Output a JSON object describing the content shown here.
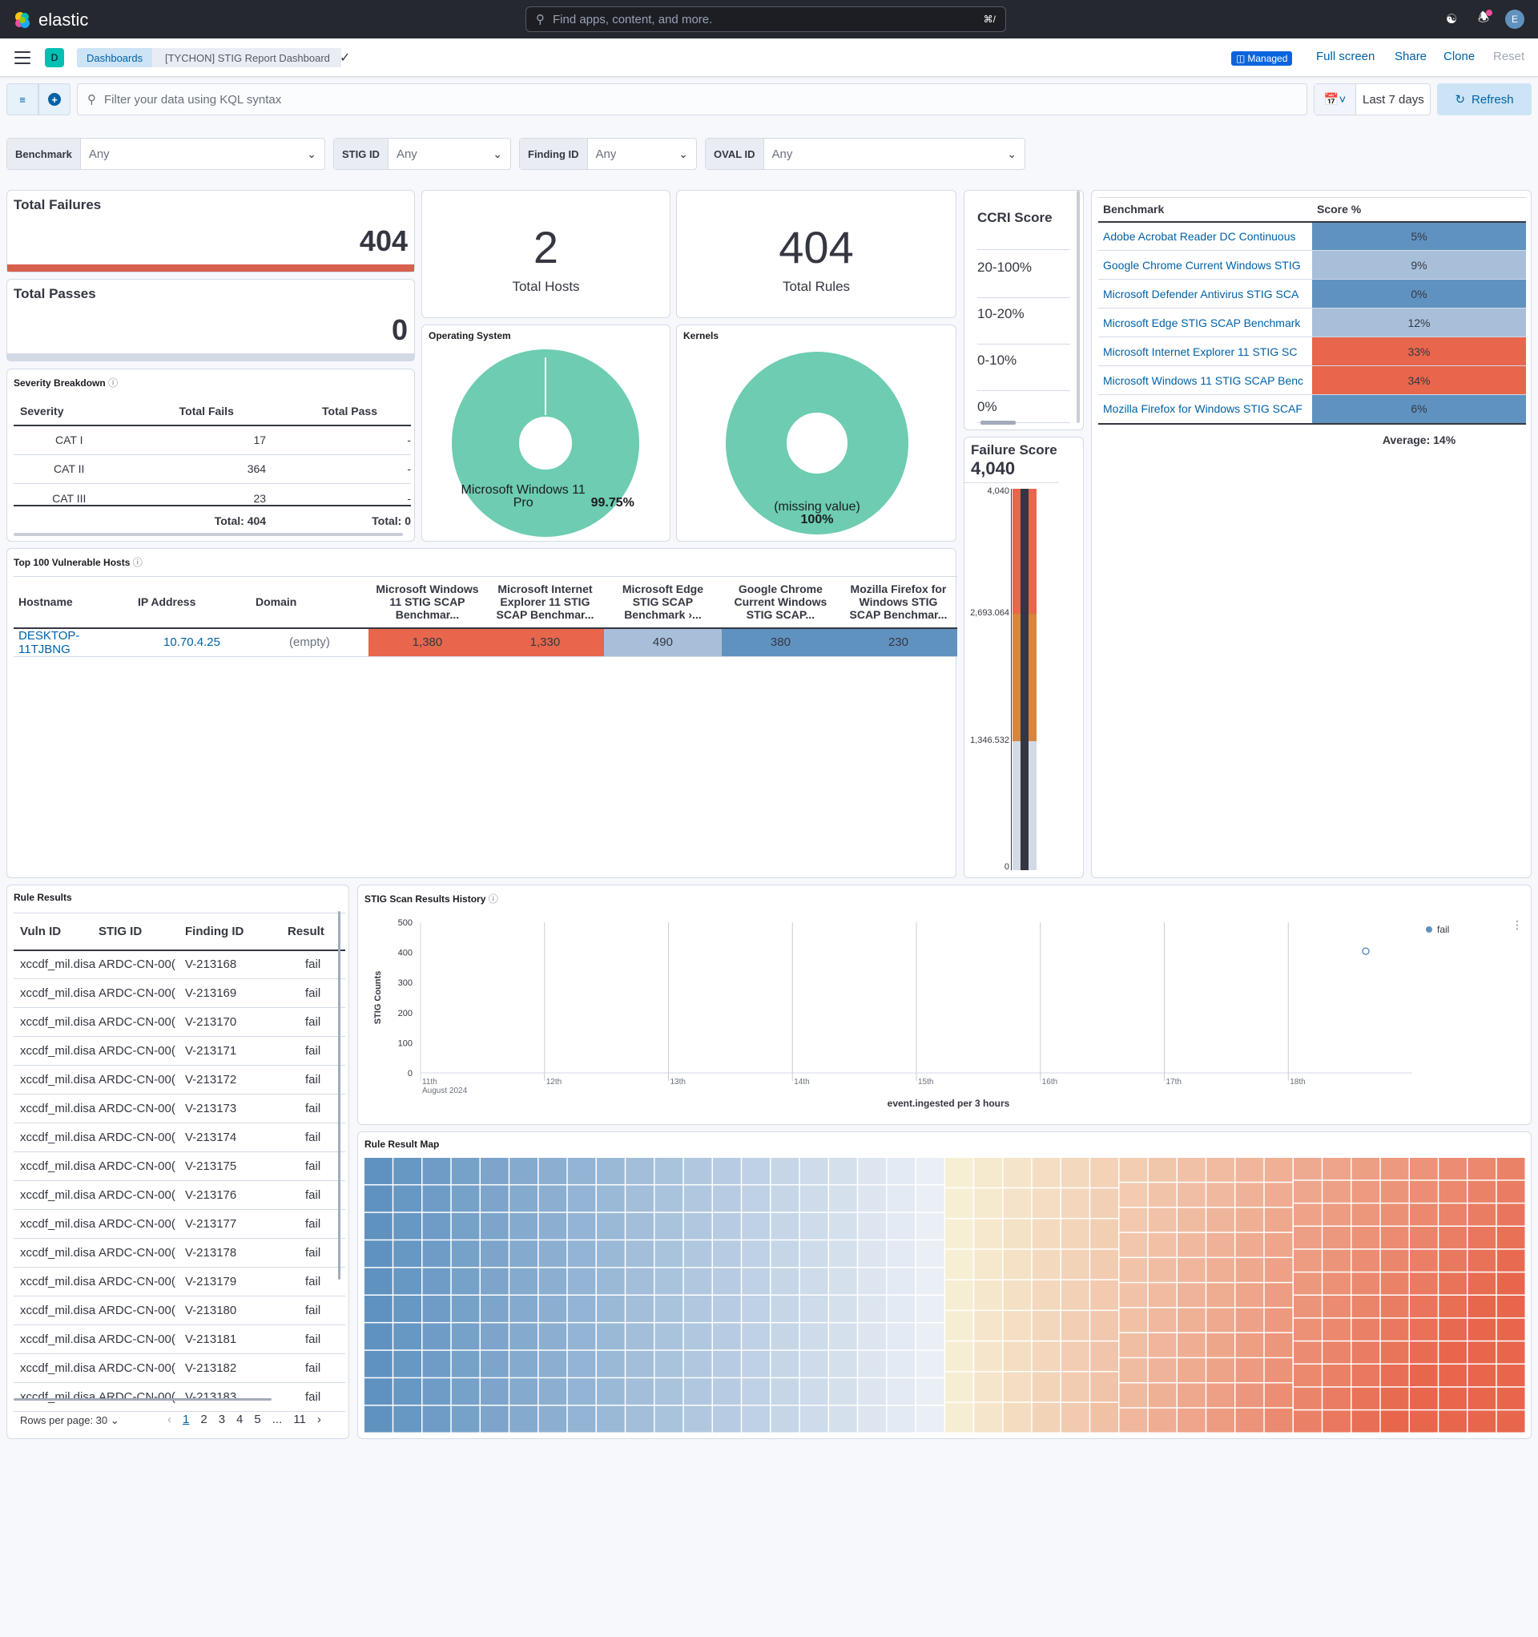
{
  "app": {
    "name": "elastic",
    "search_placeholder": "Find apps, content, and more.",
    "search_shortcut": "⌘/",
    "avatar_initial": "E"
  },
  "header": {
    "space_badge": "D",
    "breadcrumbs": [
      "Dashboards",
      "[TYCHON] STIG Report Dashboard"
    ],
    "managed_label": "Managed",
    "actions": {
      "fullscreen": "Full screen",
      "share": "Share",
      "clone": "Clone",
      "reset": "Reset"
    }
  },
  "query": {
    "placeholder": "Filter your data using KQL syntax",
    "time_range": "Last 7 days",
    "refresh_label": "Refresh"
  },
  "controls": [
    {
      "label": "Benchmark",
      "value": "Any"
    },
    {
      "label": "STIG ID",
      "value": "Any"
    },
    {
      "label": "Finding ID",
      "value": "Any"
    },
    {
      "label": "OVAL ID",
      "value": "Any"
    }
  ],
  "metrics": {
    "total_failures": {
      "title": "Total Failures",
      "value": "404",
      "color": "#d6604d"
    },
    "total_passes": {
      "title": "Total Passes",
      "value": "0",
      "color": "#d3dae6"
    },
    "total_hosts": {
      "value": "2",
      "label": "Total Hosts"
    },
    "total_rules": {
      "value": "404",
      "label": "Total Rules"
    }
  },
  "severity": {
    "title": "Severity Breakdown",
    "headers": [
      "Severity",
      "Total Fails",
      "Total Pass"
    ],
    "rows": [
      [
        "CAT I",
        "17",
        "-"
      ],
      [
        "CAT II",
        "364",
        "-"
      ],
      [
        "CAT III",
        "23",
        "-"
      ]
    ],
    "totals": [
      "Total: 404",
      "Total: 0"
    ]
  },
  "os_chart": {
    "title": "Operating System",
    "label": "Microsoft Windows 11 Pro",
    "percent": "99.75%",
    "share": 0.9975,
    "color": "#6dccb1"
  },
  "kernel_chart": {
    "title": "Kernels",
    "label": "(missing value)",
    "percent": "100%",
    "share": 1.0,
    "color": "#6dccb1"
  },
  "ccri": {
    "title": "CCRI Score",
    "rows": [
      "20-100%",
      "10-20%",
      "0-10%",
      "0%"
    ]
  },
  "failure_score": {
    "title": "Failure Score",
    "value": "4,040",
    "ticks": [
      "4,040",
      "2,693.064",
      "1,346.532",
      "0"
    ],
    "colors": {
      "high": "#e7664c",
      "mid": "#d6863f",
      "low": "#d3dae6",
      "bar": "#343741"
    }
  },
  "benchmark_table": {
    "headers": [
      "Benchmark",
      "Score %"
    ],
    "rows": [
      {
        "name": "Adobe Acrobat Reader DC Continuous",
        "score": "5%",
        "color": "#6092c0"
      },
      {
        "name": "Google Chrome Current Windows STIG",
        "score": "9%",
        "color": "#a8bfda"
      },
      {
        "name": "Microsoft Defender Antivirus STIG SCA",
        "score": "0%",
        "color": "#6092c0"
      },
      {
        "name": "Microsoft Edge STIG SCAP Benchmark",
        "score": "12%",
        "color": "#a8bfda"
      },
      {
        "name": "Microsoft Internet Explorer 11 STIG SC",
        "score": "33%",
        "color": "#e7664c"
      },
      {
        "name": "Microsoft Windows 11 STIG SCAP Benc",
        "score": "34%",
        "color": "#e7664c"
      },
      {
        "name": "Mozilla Firefox for Windows STIG SCAF",
        "score": "6%",
        "color": "#6092c0"
      }
    ],
    "average": "Average: 14%"
  },
  "hosts": {
    "title": "Top 100 Vulnerable Hosts",
    "headers": [
      "Hostname",
      "IP Address",
      "Domain",
      "Microsoft Windows 11 STIG SCAP Benchmar...",
      "Microsoft Internet Explorer 11 STIG SCAP Benchmar...",
      "Microsoft Edge STIG SCAP Benchmark ›...",
      "Google Chrome Current Windows STIG SCAP...",
      "Mozilla Firefox for Windows STIG SCAP Benchmar..."
    ],
    "rows": [
      {
        "hostname": "DESKTOP-11TJBNG",
        "ip": "10.70.4.25",
        "domain": "(empty)",
        "values": [
          "1,380",
          "1,330",
          "490",
          "380",
          "230"
        ],
        "colors": [
          "#e7664c",
          "#e7664c",
          "#a8bfda",
          "#6092c0",
          "#6092c0"
        ]
      }
    ]
  },
  "rule_results": {
    "title": "Rule Results",
    "headers": [
      "Vuln ID",
      "STIG ID",
      "Finding ID",
      "Result"
    ],
    "rows": [
      [
        "xccdf_mil.disa",
        "ARDC-CN-00(",
        "V-213168",
        "fail"
      ],
      [
        "xccdf_mil.disa",
        "ARDC-CN-00(",
        "V-213169",
        "fail"
      ],
      [
        "xccdf_mil.disa",
        "ARDC-CN-00(",
        "V-213170",
        "fail"
      ],
      [
        "xccdf_mil.disa",
        "ARDC-CN-00(",
        "V-213171",
        "fail"
      ],
      [
        "xccdf_mil.disa",
        "ARDC-CN-00(",
        "V-213172",
        "fail"
      ],
      [
        "xccdf_mil.disa",
        "ARDC-CN-00(",
        "V-213173",
        "fail"
      ],
      [
        "xccdf_mil.disa",
        "ARDC-CN-00(",
        "V-213174",
        "fail"
      ],
      [
        "xccdf_mil.disa",
        "ARDC-CN-00(",
        "V-213175",
        "fail"
      ],
      [
        "xccdf_mil.disa",
        "ARDC-CN-00(",
        "V-213176",
        "fail"
      ],
      [
        "xccdf_mil.disa",
        "ARDC-CN-00(",
        "V-213177",
        "fail"
      ],
      [
        "xccdf_mil.disa",
        "ARDC-CN-00(",
        "V-213178",
        "fail"
      ],
      [
        "xccdf_mil.disa",
        "ARDC-CN-00(",
        "V-213179",
        "fail"
      ],
      [
        "xccdf_mil.disa",
        "ARDC-CN-00(",
        "V-213180",
        "fail"
      ],
      [
        "xccdf_mil.disa",
        "ARDC-CN-00(",
        "V-213181",
        "fail"
      ],
      [
        "xccdf_mil.disa",
        "ARDC-CN-00(",
        "V-213182",
        "fail"
      ],
      [
        "xccdf_mil.disa",
        "ARDC-CN-00(",
        "V-213183",
        "fail"
      ]
    ],
    "rows_per_page": "Rows per page: 30",
    "pages": [
      "1",
      "2",
      "3",
      "4",
      "5",
      "...",
      "11"
    ]
  },
  "chart_data": {
    "type": "line",
    "title": "STIG Scan Results History",
    "xlabel": "event.ingested per 3 hours",
    "ylabel": "STIG Counts",
    "x_ticks": [
      "11th",
      "12th",
      "13th",
      "14th",
      "15th",
      "16th",
      "17th",
      "18th"
    ],
    "x_subtitle": "August 2024",
    "y_ticks": [
      0,
      100,
      200,
      300,
      400,
      500
    ],
    "ylim": [
      0,
      500
    ],
    "series": [
      {
        "name": "fail",
        "points": [
          {
            "x": "2024-08-18T15:00",
            "y": 404
          }
        ]
      }
    ],
    "legend": "top-right",
    "color": "#6092c0"
  },
  "rule_map": {
    "title": "Rule Result Map"
  }
}
